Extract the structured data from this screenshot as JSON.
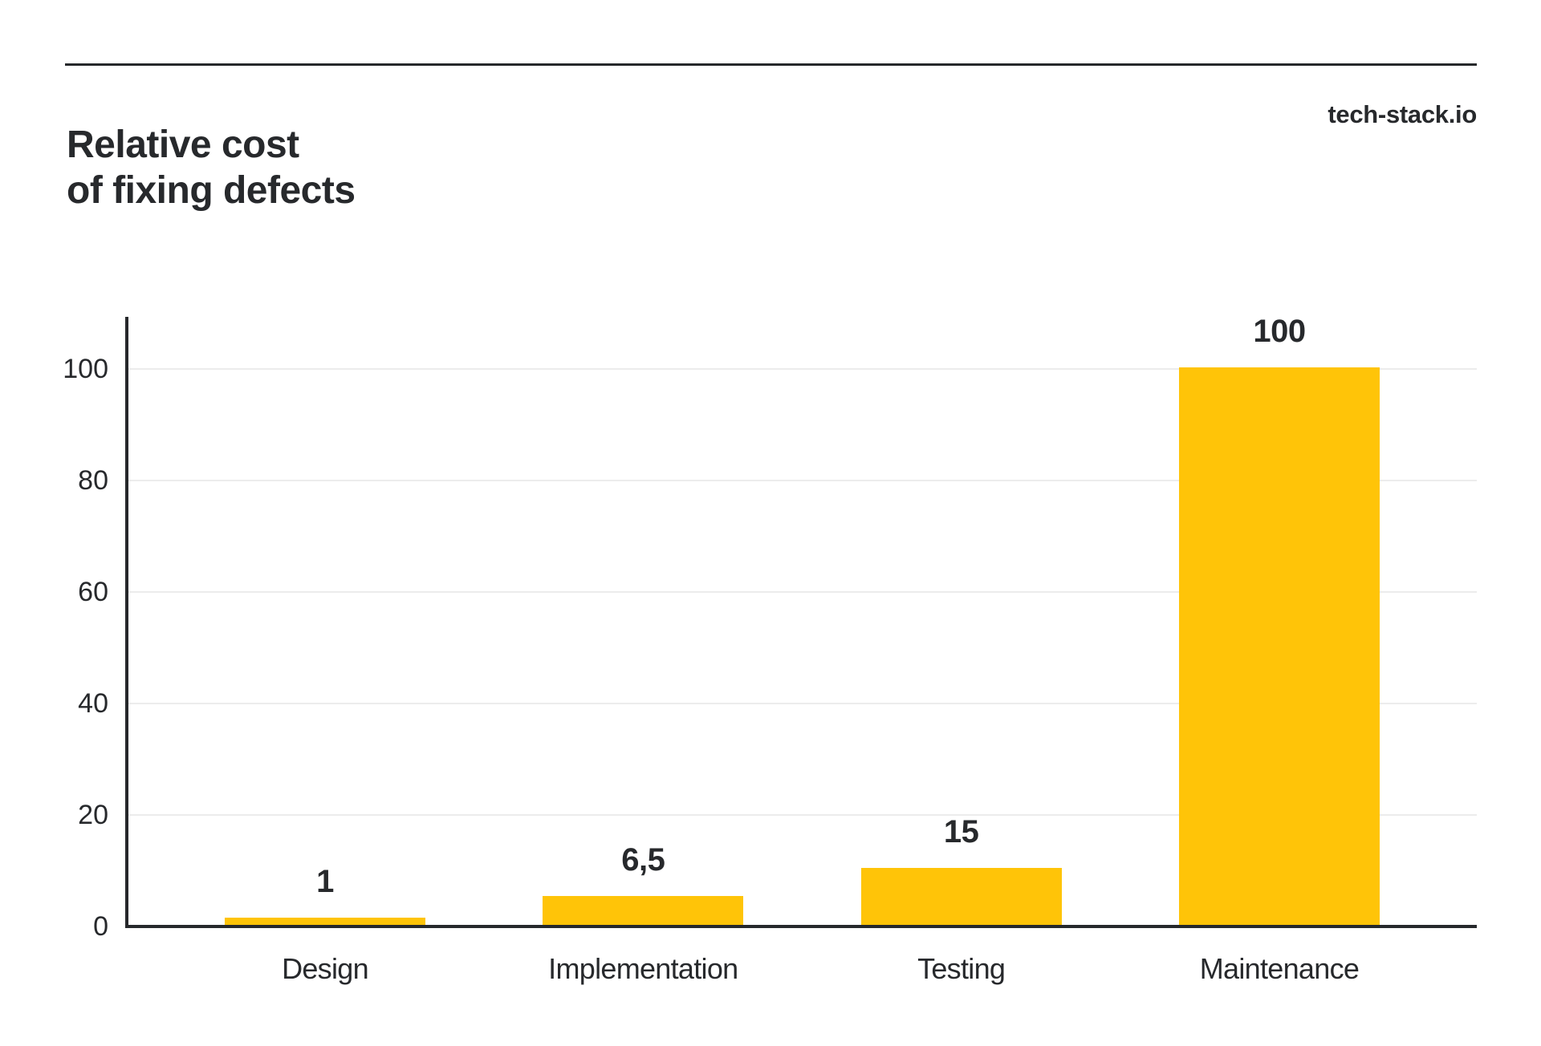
{
  "header": {
    "title": "Relative cost\nof fixing defects",
    "brand": "tech-stack.io"
  },
  "colors": {
    "background": "#ffffff",
    "text": "#27292c",
    "axis": "#26282b",
    "gridline": "#ececec",
    "accent_bar": "#ffc408"
  },
  "chart_data": {
    "type": "bar",
    "title": "Relative cost of fixing defects",
    "source_label": "tech-stack.io",
    "categories": [
      "Design",
      "Implementation",
      "Testing",
      "Maintenance"
    ],
    "values": [
      1,
      6.5,
      15,
      100
    ],
    "value_labels": [
      "1",
      "6,5",
      "15",
      "100"
    ],
    "xlabel": "",
    "ylabel": "",
    "yticks": [
      0,
      20,
      40,
      60,
      80,
      100
    ],
    "ylim": [
      0,
      109
    ],
    "grid": "horizontal-light",
    "legend": "none",
    "bar_color": "#ffc408",
    "bar_rendered_units": [
      1.3,
      5.2,
      10.2,
      100
    ]
  }
}
